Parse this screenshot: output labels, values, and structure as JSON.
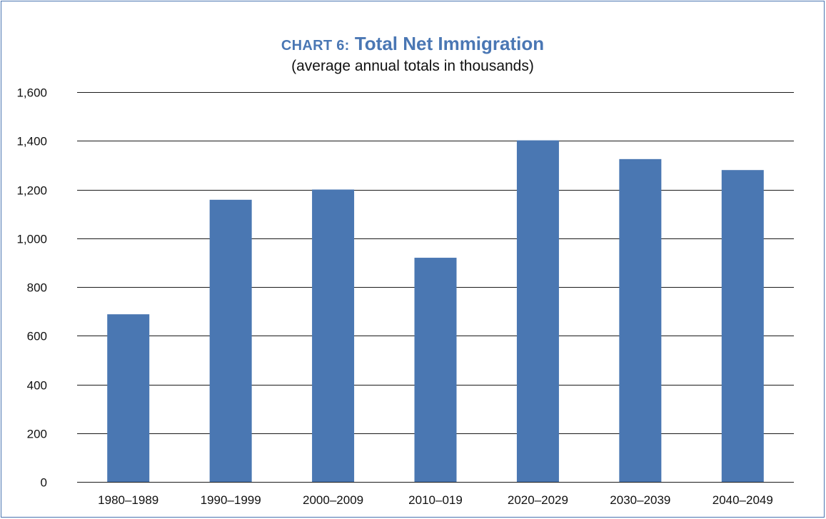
{
  "chart_data": {
    "type": "bar",
    "title_prefix": "CHART 6:",
    "title": "Total Net Immigration",
    "subtitle": "(average annual totals in thousands)",
    "categories": [
      "1980–1989",
      "1990–1999",
      "2000–2009",
      "2010–019",
      "2020–2029",
      "2030–2039",
      "2040–2049"
    ],
    "values": [
      688,
      1158,
      1200,
      920,
      1402,
      1325,
      1280
    ],
    "ylim": [
      0,
      1600
    ],
    "yticks": [
      0,
      200,
      400,
      600,
      800,
      1000,
      1200,
      1400,
      1600
    ],
    "ytick_labels": [
      "0",
      "200",
      "400",
      "600",
      "800",
      "1,000",
      "1,200",
      "1,400",
      "1,600"
    ],
    "xlabel": "",
    "ylabel": "",
    "grid": true,
    "legend": false,
    "colors": {
      "bar": "#4a77b2",
      "gridline": "#1a1a1a",
      "title": "#4a77b4",
      "border": "#4a74b0"
    }
  }
}
